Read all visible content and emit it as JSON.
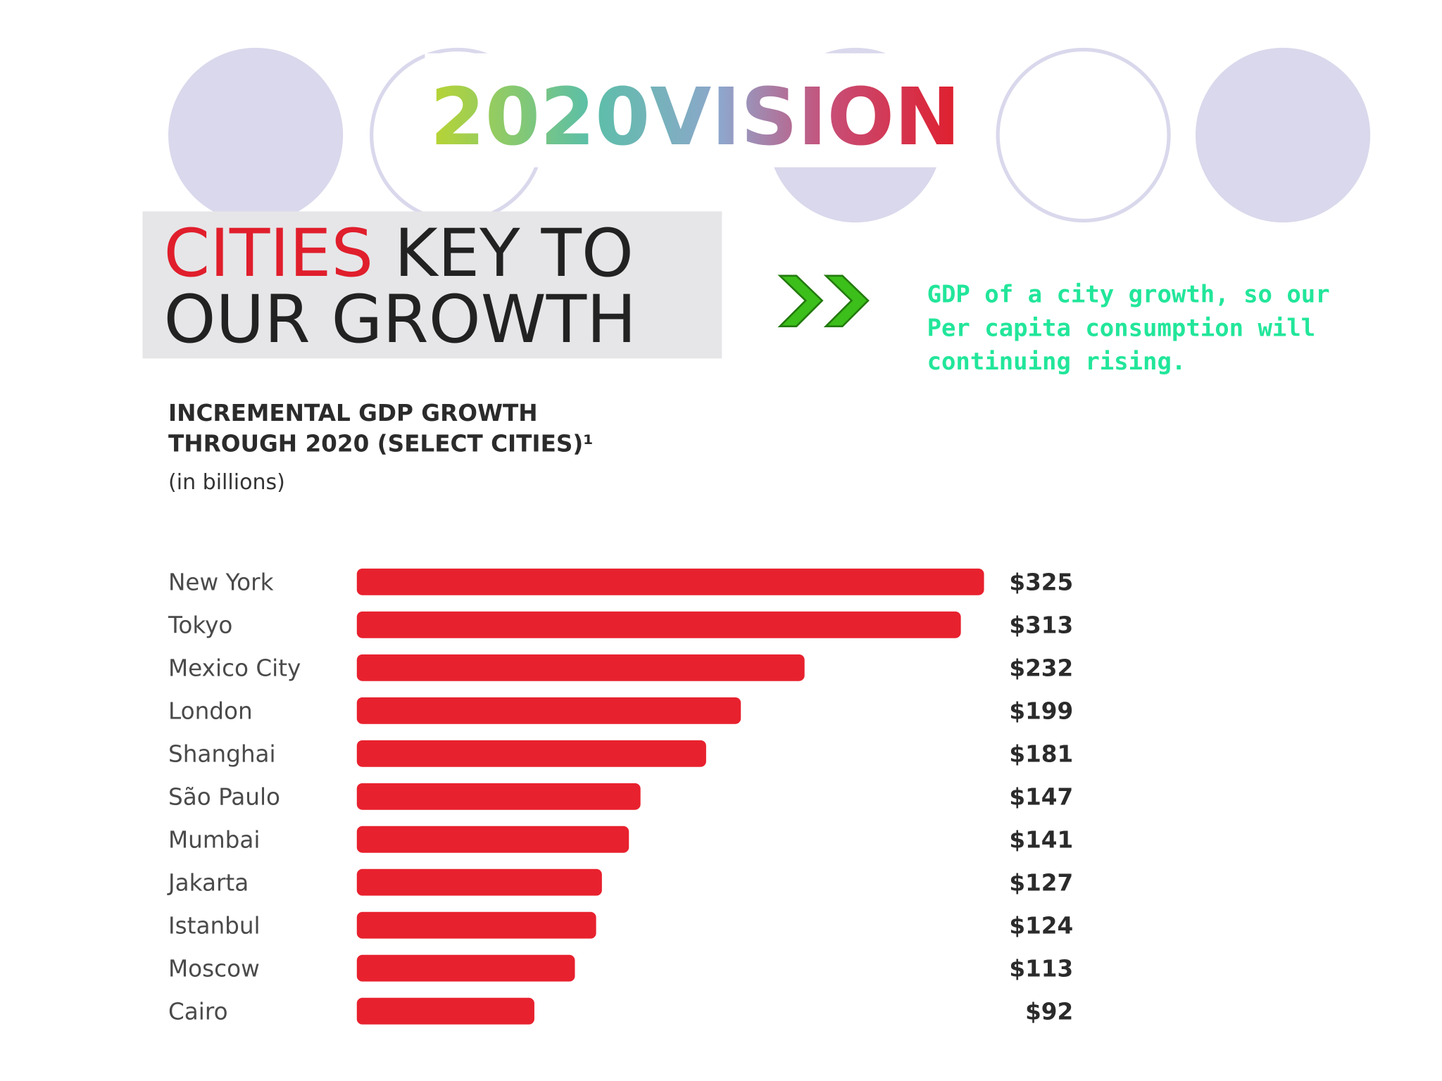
{
  "slide": {
    "logo": "2020VISION",
    "heading": {
      "red": "CITIES",
      "rest": "KEY TO",
      "line2": "OUR GROWTH"
    },
    "note": [
      "GDP of a city growth, so our",
      "Per capita consumption will",
      "continuing rising."
    ]
  },
  "chart_data": {
    "type": "bar",
    "orientation": "horizontal",
    "title": [
      "INCREMENTAL GDP GROWTH",
      "THROUGH 2020 (SELECT CITIES)¹"
    ],
    "subtitle": "(in billions)",
    "categories": [
      "New York",
      "Tokyo",
      "Mexico City",
      "London",
      "Shanghai",
      "São Paulo",
      "Mumbai",
      "Jakarta",
      "Istanbul",
      "Moscow",
      "Cairo"
    ],
    "values": [
      325,
      313,
      232,
      199,
      181,
      147,
      141,
      127,
      124,
      113,
      92
    ],
    "value_labels": [
      "$325",
      "$313",
      "$232",
      "$199",
      "$181",
      "$147",
      "$141",
      "$127",
      "$124",
      "$113",
      "$92"
    ],
    "color": "#e8212e"
  }
}
